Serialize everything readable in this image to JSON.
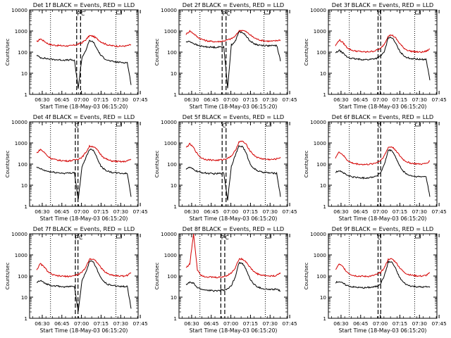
{
  "chart_data": [
    {
      "type": "line",
      "title": "Det 1f BLACK = Events, RED = LLD",
      "xlabel": "Start Time (18-May-03 06:15:20)",
      "ylabel": "Counts/sec",
      "x_ticks": [
        "06:30",
        "06:45",
        "07:00",
        "07:15",
        "07:30",
        "07:45"
      ],
      "y_ticks": [
        "1",
        "10",
        "100",
        "1000",
        "10000"
      ],
      "ylim": [
        1,
        10000
      ],
      "y_scale": "log",
      "flags": [
        "P",
        "C"
      ],
      "dotted_lines_minutes": [
        21,
        71
      ],
      "dashed_lines_minutes": [
        41,
        44
      ],
      "series": [
        {
          "color": "#d40000",
          "values": [
            300,
            430,
            330,
            250,
            220,
            210,
            205,
            200,
            198,
            200,
            215,
            240,
            280,
            380,
            600,
            560,
            430,
            310,
            250,
            215,
            200,
            195,
            190,
            192,
            200,
            225
          ]
        },
        {
          "color": "#000000",
          "values": [
            70,
            55,
            52,
            48,
            46,
            44,
            43,
            42,
            42,
            43,
            40,
            2,
            55,
            120,
            350,
            300,
            140,
            70,
            50,
            40,
            36,
            34,
            33,
            32,
            32,
            3
          ]
        }
      ]
    },
    {
      "type": "line",
      "title": "Det 2f BLACK = Events, RED = LLD",
      "xlabel": "Start Time (18-May-03 06:15:20)",
      "ylabel": "Counts/sec",
      "x_ticks": [
        "06:30",
        "06:45",
        "07:00",
        "07:15",
        "07:30",
        "07:45"
      ],
      "y_ticks": [
        "1",
        "10",
        "100",
        "1000",
        "10000"
      ],
      "ylim": [
        1,
        10000
      ],
      "y_scale": "log",
      "flags": [
        "P",
        "C"
      ],
      "dotted_lines_minutes": [
        21,
        70
      ],
      "dashed_lines_minutes": [
        38,
        41
      ],
      "series": [
        {
          "color": "#d40000",
          "values": [
            700,
            1000,
            760,
            520,
            420,
            360,
            330,
            320,
            310,
            320,
            340,
            380,
            430,
            560,
            1000,
            1100,
            900,
            650,
            480,
            400,
            360,
            340,
            330,
            330,
            350,
            380
          ]
        },
        {
          "color": "#000000",
          "values": [
            300,
            320,
            260,
            210,
            190,
            180,
            175,
            170,
            170,
            175,
            180,
            2,
            220,
            320,
            900,
            850,
            560,
            330,
            250,
            220,
            210,
            205,
            200,
            200,
            210,
            40
          ]
        }
      ]
    },
    {
      "type": "line",
      "title": "Det 3f BLACK = Events, RED = LLD",
      "xlabel": "Start Time (18-May-03 06:15:20)",
      "ylabel": "Counts/sec",
      "x_ticks": [
        "06:30",
        "06:45",
        "07:00",
        "07:15",
        "07:30",
        "07:45"
      ],
      "y_ticks": [
        "1",
        "10",
        "100",
        "1000",
        "10000"
      ],
      "ylim": [
        1,
        10000
      ],
      "y_scale": "log",
      "flags": [
        "C"
      ],
      "dotted_lines_minutes": [
        21,
        71
      ],
      "dashed_lines_minutes": [
        43,
        45
      ],
      "series": [
        {
          "color": "#d40000",
          "values": [
            200,
            380,
            280,
            170,
            130,
            115,
            110,
            105,
            100,
            105,
            110,
            125,
            150,
            250,
            600,
            640,
            450,
            260,
            160,
            125,
            110,
            105,
            100,
            100,
            110,
            140
          ]
        },
        {
          "color": "#000000",
          "values": [
            90,
            120,
            90,
            60,
            52,
            48,
            46,
            45,
            44,
            45,
            48,
            52,
            65,
            110,
            500,
            480,
            250,
            110,
            70,
            55,
            50,
            48,
            46,
            45,
            46,
            5
          ]
        }
      ]
    },
    {
      "type": "line",
      "title": "Det 4f BLACK = Events, RED = LLD",
      "xlabel": "Start Time (18-May-03 06:15:20)",
      "ylabel": "Counts/sec",
      "x_ticks": [
        "06:30",
        "06:45",
        "07:00",
        "07:15",
        "07:30",
        "07:45"
      ],
      "y_ticks": [
        "1",
        "10",
        "100",
        "1000",
        "10000"
      ],
      "ylim": [
        1,
        10000
      ],
      "y_scale": "log",
      "flags": [
        "C"
      ],
      "dotted_lines_minutes": [
        21,
        71
      ],
      "dashed_lines_minutes": [
        40,
        42
      ],
      "series": [
        {
          "color": "#d40000",
          "values": [
            330,
            500,
            360,
            230,
            180,
            160,
            150,
            145,
            140,
            145,
            155,
            175,
            210,
            350,
            700,
            680,
            480,
            280,
            190,
            155,
            140,
            135,
            130,
            130,
            140,
            170
          ]
        },
        {
          "color": "#000000",
          "values": [
            70,
            60,
            50,
            45,
            42,
            40,
            38,
            37,
            37,
            38,
            40,
            2,
            70,
            200,
            500,
            480,
            200,
            80,
            55,
            45,
            40,
            38,
            37,
            36,
            36,
            3
          ]
        }
      ]
    },
    {
      "type": "line",
      "title": "Det 5f BLACK = Events, RED = LLD",
      "xlabel": "Start Time (18-May-03 06:15:20)",
      "ylabel": "Counts/sec",
      "x_ticks": [
        "06:30",
        "06:45",
        "07:00",
        "07:15",
        "07:30",
        "07:45"
      ],
      "y_ticks": [
        "1",
        "10",
        "100",
        "1000",
        "10000"
      ],
      "ylim": [
        1,
        10000
      ],
      "y_scale": "log",
      "flags": [
        "C"
      ],
      "dotted_lines_minutes": [
        21,
        71
      ],
      "dashed_lines_minutes": [
        38,
        41
      ],
      "series": [
        {
          "color": "#d40000",
          "values": [
            600,
            900,
            600,
            300,
            200,
            170,
            160,
            155,
            150,
            155,
            165,
            190,
            240,
            420,
            1100,
            1200,
            800,
            420,
            260,
            200,
            180,
            170,
            165,
            165,
            175,
            210
          ]
        },
        {
          "color": "#000000",
          "values": [
            60,
            70,
            55,
            45,
            40,
            38,
            36,
            35,
            35,
            36,
            38,
            2,
            80,
            250,
            700,
            680,
            300,
            100,
            60,
            48,
            42,
            40,
            38,
            37,
            37,
            3
          ]
        }
      ]
    },
    {
      "type": "line",
      "title": "Det 6f BLACK = Events, RED = LLD",
      "xlabel": "Start Time (18-May-03 06:15:20)",
      "ylabel": "Counts/sec",
      "x_ticks": [
        "06:30",
        "06:45",
        "07:00",
        "07:15",
        "07:30",
        "07:45"
      ],
      "y_ticks": [
        "1",
        "10",
        "100",
        "1000",
        "10000"
      ],
      "ylim": [
        1,
        10000
      ],
      "y_scale": "log",
      "flags": [
        "C"
      ],
      "dotted_lines_minutes": [
        21,
        71
      ],
      "dashed_lines_minutes": [
        43,
        45
      ],
      "series": [
        {
          "color": "#d40000",
          "values": [
            200,
            380,
            270,
            160,
            120,
            105,
            100,
            97,
            95,
            98,
            105,
            120,
            150,
            260,
            620,
            650,
            450,
            250,
            160,
            125,
            110,
            105,
            100,
            100,
            108,
            140
          ]
        },
        {
          "color": "#000000",
          "values": [
            40,
            50,
            40,
            30,
            26,
            24,
            23,
            22,
            22,
            23,
            25,
            28,
            40,
            100,
            450,
            430,
            200,
            80,
            45,
            32,
            28,
            26,
            25,
            25,
            26,
            3
          ]
        }
      ]
    },
    {
      "type": "line",
      "title": "Det 7f BLACK = Events, RED = LLD",
      "xlabel": "Start Time (18-May-03 06:15:20)",
      "ylabel": "Counts/sec",
      "x_ticks": [
        "06:30",
        "06:45",
        "07:00",
        "07:15",
        "07:30",
        "07:45"
      ],
      "y_ticks": [
        "1",
        "10",
        "100",
        "1000",
        "10000"
      ],
      "ylim": [
        1,
        10000
      ],
      "y_scale": "log",
      "flags": [
        "P",
        "C"
      ],
      "dotted_lines_minutes": [
        21,
        71
      ],
      "dashed_lines_minutes": [
        40,
        42
      ],
      "series": [
        {
          "color": "#d40000",
          "values": [
            200,
            380,
            270,
            160,
            120,
            105,
            100,
            98,
            96,
            98,
            105,
            120,
            150,
            260,
            650,
            640,
            450,
            250,
            160,
            125,
            110,
            105,
            100,
            100,
            108,
            140
          ]
        },
        {
          "color": "#000000",
          "values": [
            50,
            60,
            48,
            40,
            36,
            34,
            32,
            31,
            31,
            32,
            34,
            2,
            60,
            150,
            500,
            480,
            200,
            80,
            50,
            40,
            36,
            34,
            33,
            32,
            32,
            3
          ]
        }
      ]
    },
    {
      "type": "line",
      "title": "Det 8f BLACK = Events, RED = LLD",
      "xlabel": "Start Time (18-May-03 06:15:20)",
      "ylabel": "Counts/sec",
      "x_ticks": [
        "06:30",
        "06:45",
        "07:00",
        "07:15",
        "07:30",
        "07:45"
      ],
      "y_ticks": [
        "1",
        "10",
        "100",
        "1000",
        "10000"
      ],
      "ylim": [
        1,
        10000
      ],
      "y_scale": "log",
      "flags": [
        "P",
        "C"
      ],
      "dotted_lines_minutes": [
        21,
        71
      ],
      "dashed_lines_minutes": [
        37,
        40
      ],
      "series": [
        {
          "color": "#d40000",
          "values": [
            250,
            380,
            10000,
            200,
            110,
            95,
            90,
            88,
            86,
            88,
            95,
            110,
            140,
            240,
            620,
            640,
            450,
            250,
            160,
            125,
            110,
            105,
            100,
            100,
            108,
            140
          ]
        },
        {
          "color": "#000000",
          "values": [
            40,
            50,
            45,
            28,
            24,
            22,
            21,
            20,
            20,
            21,
            22,
            24,
            35,
            90,
            420,
            400,
            180,
            70,
            40,
            30,
            26,
            24,
            23,
            23,
            24,
            20
          ]
        }
      ]
    },
    {
      "type": "line",
      "title": "Det 9f BLACK = Events, RED = LLD",
      "xlabel": "Start Time (18-May-03 06:15:20)",
      "ylabel": "Counts/sec",
      "x_ticks": [
        "06:30",
        "06:45",
        "07:00",
        "07:15",
        "07:30",
        "07:45"
      ],
      "y_ticks": [
        "1",
        "10",
        "100",
        "1000",
        "10000"
      ],
      "ylim": [
        1,
        10000
      ],
      "y_scale": "log",
      "flags": [
        "C"
      ],
      "dotted_lines_minutes": [
        21,
        71
      ],
      "dashed_lines_minutes": [
        43,
        45
      ],
      "series": [
        {
          "color": "#d40000",
          "values": [
            200,
            370,
            270,
            160,
            120,
            105,
            100,
            98,
            96,
            98,
            105,
            120,
            150,
            260,
            620,
            640,
            450,
            250,
            160,
            125,
            110,
            105,
            100,
            100,
            108,
            140
          ]
        },
        {
          "color": "#000000",
          "values": [
            50,
            55,
            45,
            36,
            32,
            30,
            29,
            28,
            28,
            29,
            30,
            33,
            45,
            110,
            470,
            450,
            210,
            85,
            50,
            38,
            34,
            32,
            31,
            30,
            31,
            30
          ]
        }
      ]
    }
  ]
}
